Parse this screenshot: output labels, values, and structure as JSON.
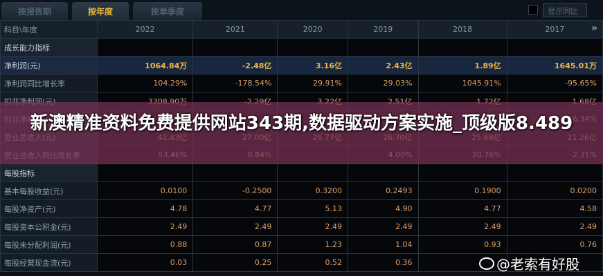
{
  "tabs": [
    {
      "label": "按报告期",
      "active": false
    },
    {
      "label": "按年度",
      "active": true
    },
    {
      "label": "按单季度",
      "active": false
    }
  ],
  "compare_label": "显示同比",
  "table": {
    "header": "科目\\年度",
    "years": [
      "2022",
      "2021",
      "2020",
      "2019",
      "2018",
      "2017"
    ],
    "rows": [
      {
        "label": "成长能力指标",
        "type": "sec",
        "values": [
          "",
          "",
          "",
          "",
          "",
          ""
        ]
      },
      {
        "label": "净利润(元)",
        "type": "hl",
        "values": [
          "1064.84万",
          "-2.48亿",
          "3.16亿",
          "2.43亿",
          "1.89亿",
          "1645.01万"
        ]
      },
      {
        "label": "净利润同比增长率",
        "type": "",
        "values": [
          "104.29%",
          "-178.54%",
          "29.91%",
          "29.03%",
          "1045.91%",
          "-95.65%"
        ]
      },
      {
        "label": "扣非净利润(元)",
        "type": "",
        "values": [
          "3308.90万",
          "-2.29亿",
          "3.22亿",
          "2.51亿",
          "1.72亿",
          "1.68亿"
        ]
      },
      {
        "label": "扣非净利",
        "type": "",
        "values": [
          "",
          "",
          "",
          "",
          "",
          "-56.34%"
        ]
      },
      {
        "label": "营业总收入(元)",
        "type": "",
        "values": [
          "41.43亿",
          "27.00亿",
          "26.77亿",
          "26.70亿",
          "25.68亿",
          "21.26亿"
        ]
      },
      {
        "label": "营业总收入同比增长率",
        "type": "",
        "values": [
          "53.46%",
          "0.84%",
          "",
          "4.00%",
          "20.76%",
          "-2.31%"
        ]
      },
      {
        "label": "每股指标",
        "type": "sec",
        "values": [
          "",
          "",
          "",
          "",
          "",
          ""
        ]
      },
      {
        "label": "基本每股收益(元)",
        "type": "",
        "values": [
          "0.0100",
          "-0.2500",
          "0.3200",
          "0.2493",
          "0.1900",
          "0.0200"
        ]
      },
      {
        "label": "每股净资产(元)",
        "type": "",
        "values": [
          "4.78",
          "4.77",
          "5.13",
          "4.90",
          "4.77",
          "4.58"
        ]
      },
      {
        "label": "每股资本公积金(元)",
        "type": "",
        "values": [
          "2.49",
          "2.49",
          "2.49",
          "2.49",
          "2.49",
          "2.49"
        ]
      },
      {
        "label": "每股未分配利润(元)",
        "type": "",
        "values": [
          "0.88",
          "0.87",
          "1.23",
          "1.04",
          "0.93",
          "0.76"
        ]
      },
      {
        "label": "每股经营现金流(元)",
        "type": "",
        "values": [
          "0.03",
          "0.25",
          "0.52",
          "0.36",
          "",
          ""
        ]
      }
    ]
  },
  "overlay_title": "新澳精准资料免费提供网站343期,数据驱动方案实施_顶级版8.489",
  "watermark": "@老索有好股",
  "colors": {
    "accent": "#e7b53c",
    "value": "#dca06a",
    "overlay": "#7a3256"
  }
}
